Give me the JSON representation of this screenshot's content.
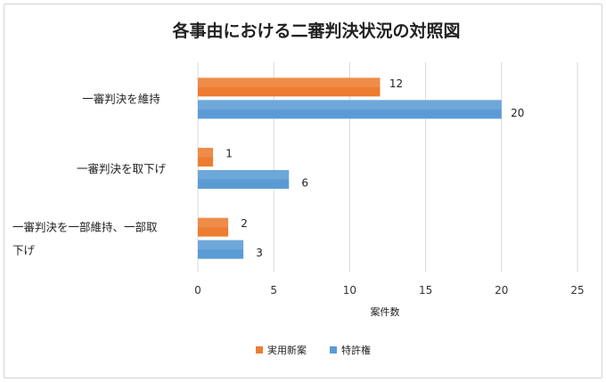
{
  "chart_data": {
    "type": "bar",
    "orientation": "horizontal",
    "title": "各事由における二審判決状況の対照図",
    "xlabel": "案件数",
    "ylabel": "",
    "xlim": [
      0,
      25
    ],
    "xticks": [
      0,
      5,
      10,
      15,
      20,
      25
    ],
    "grid": true,
    "legend_position": "bottom",
    "categories": [
      [
        "一審判決を維持"
      ],
      [
        "一審判決を取下げ"
      ],
      [
        "一審判決を一部維持、一部取",
        "下げ"
      ]
    ],
    "series": [
      {
        "name": "実用新案",
        "color": "#ED7D31",
        "values": [
          12,
          1,
          2
        ]
      },
      {
        "name": "特許権",
        "color": "#5B9BD5",
        "values": [
          20,
          6,
          3
        ]
      }
    ]
  }
}
